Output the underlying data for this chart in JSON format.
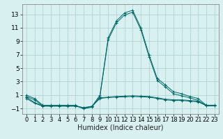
{
  "xlabel": "Humidex (Indice chaleur)",
  "bg_color": "#d8f0f0",
  "grid_color": "#aacece",
  "line_color": "#006868",
  "xlim": [
    -0.5,
    23.5
  ],
  "ylim": [
    -1.8,
    14.5
  ],
  "yticks": [
    -1,
    1,
    3,
    5,
    7,
    9,
    11,
    13
  ],
  "xticks": [
    0,
    1,
    2,
    3,
    4,
    5,
    6,
    7,
    8,
    9,
    10,
    11,
    12,
    13,
    14,
    15,
    16,
    17,
    18,
    19,
    20,
    21,
    22,
    23
  ],
  "series": [
    {
      "x": [
        0,
        1,
        2,
        3,
        4,
        5,
        6,
        7,
        8,
        9,
        10,
        11,
        12,
        13,
        14,
        15,
        16,
        17,
        18,
        19,
        20,
        21,
        22,
        23
      ],
      "y": [
        1.0,
        0.5,
        -0.5,
        -0.5,
        -0.5,
        -0.5,
        -0.5,
        -1.0,
        -0.7,
        1.0,
        9.5,
        12.0,
        13.2,
        13.6,
        11.0,
        7.0,
        3.5,
        2.5,
        1.5,
        1.2,
        0.8,
        0.5,
        -0.5,
        -0.5
      ]
    },
    {
      "x": [
        0,
        1,
        2,
        3,
        4,
        5,
        6,
        7,
        8,
        9,
        10,
        11,
        12,
        13,
        14,
        15,
        16,
        17,
        18,
        19,
        20,
        21,
        22,
        23
      ],
      "y": [
        0.8,
        0.3,
        -0.6,
        -0.6,
        -0.6,
        -0.6,
        -0.6,
        -1.0,
        -0.8,
        0.8,
        9.2,
        11.7,
        12.9,
        13.3,
        10.7,
        6.7,
        3.2,
        2.2,
        1.2,
        0.9,
        0.6,
        0.2,
        -0.6,
        -0.6
      ]
    },
    {
      "x": [
        0,
        1,
        2,
        3,
        4,
        5,
        6,
        7,
        8,
        9,
        10,
        11,
        12,
        13,
        14,
        15,
        16,
        17,
        18,
        19,
        20,
        21,
        22,
        23
      ],
      "y": [
        0.7,
        -0.1,
        -0.6,
        -0.6,
        -0.6,
        -0.6,
        -0.6,
        -0.9,
        -0.7,
        0.6,
        0.7,
        0.8,
        0.85,
        0.9,
        0.85,
        0.8,
        0.6,
        0.4,
        0.3,
        0.3,
        0.2,
        0.1,
        -0.5,
        -0.5
      ]
    },
    {
      "x": [
        0,
        1,
        2,
        3,
        4,
        5,
        6,
        7,
        8,
        9,
        10,
        11,
        12,
        13,
        14,
        15,
        16,
        17,
        18,
        19,
        20,
        21,
        22,
        23
      ],
      "y": [
        0.5,
        -0.2,
        -0.65,
        -0.65,
        -0.65,
        -0.65,
        -0.65,
        -0.85,
        -0.65,
        0.5,
        0.65,
        0.7,
        0.75,
        0.8,
        0.75,
        0.7,
        0.5,
        0.3,
        0.2,
        0.2,
        0.1,
        0.0,
        -0.55,
        -0.55
      ]
    }
  ],
  "tick_fontsize": 6,
  "xlabel_fontsize": 7
}
